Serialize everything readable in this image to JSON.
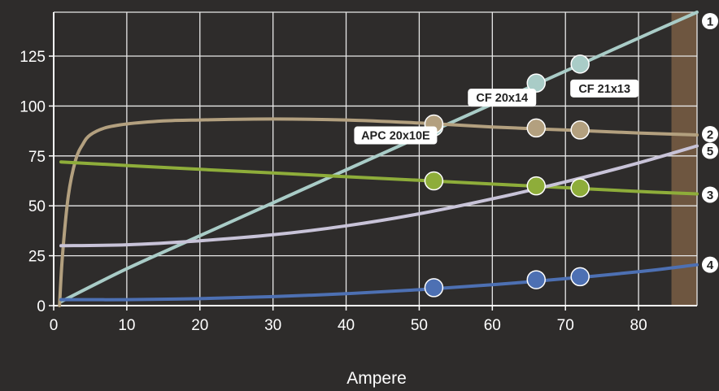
{
  "chart_data": {
    "type": "line",
    "title": "",
    "xlabel": "Ampere",
    "ylabel": "",
    "xlim": [
      0,
      88
    ],
    "ylim": [
      0,
      147
    ],
    "x_ticks": [
      0,
      10,
      20,
      30,
      40,
      50,
      60,
      70,
      80
    ],
    "y_ticks": [
      0,
      25,
      50,
      75,
      100,
      125
    ],
    "grid": true,
    "shaded_x_range": [
      84.5,
      88
    ],
    "series": [
      {
        "name": "1",
        "color": "#a9ccc7",
        "x": [
          1,
          10,
          20,
          30,
          40,
          50,
          60,
          70,
          80,
          88
        ],
        "y": [
          2,
          18.5,
          35,
          51.5,
          68,
          84.5,
          101,
          117.5,
          134,
          147
        ],
        "markers": [
          {
            "x": 52,
            "y": 89.5
          },
          {
            "x": 66,
            "y": 111.5
          },
          {
            "x": 72,
            "y": 121
          }
        ]
      },
      {
        "name": "2",
        "color": "#b3a07f",
        "x": [
          0.8,
          1.2,
          2,
          3,
          4,
          5,
          7,
          10,
          15,
          20,
          30,
          40,
          50,
          60,
          70,
          80,
          88
        ],
        "y": [
          0,
          25,
          55,
          73,
          81,
          85.5,
          89,
          91,
          92.5,
          93,
          93.5,
          93,
          91.5,
          89.5,
          88,
          86.5,
          85.5
        ],
        "markers": [
          {
            "x": 52,
            "y": 91
          },
          {
            "x": 66,
            "y": 89
          },
          {
            "x": 72,
            "y": 88
          }
        ]
      },
      {
        "name": "3",
        "color": "#8ead3a",
        "x": [
          1,
          10,
          20,
          30,
          40,
          50,
          60,
          70,
          80,
          88
        ],
        "y": [
          72,
          70.2,
          68.3,
          66.5,
          64.6,
          62.8,
          60.9,
          59.1,
          57.2,
          56
        ],
        "markers": [
          {
            "x": 52,
            "y": 62.5
          },
          {
            "x": 66,
            "y": 60
          },
          {
            "x": 72,
            "y": 59
          }
        ]
      },
      {
        "name": "4",
        "color": "#4d70b3",
        "x": [
          1,
          10,
          20,
          30,
          40,
          50,
          60,
          70,
          80,
          88
        ],
        "y": [
          3,
          3,
          3.5,
          4.5,
          6,
          8,
          10.5,
          13.5,
          17,
          20.5
        ],
        "markers": [
          {
            "x": 52,
            "y": 9
          },
          {
            "x": 66,
            "y": 13
          },
          {
            "x": 72,
            "y": 14.5
          }
        ]
      },
      {
        "name": "5",
        "color": "#c8c3d8",
        "x": [
          1,
          10,
          20,
          30,
          40,
          50,
          60,
          70,
          80,
          88
        ],
        "y": [
          30,
          30.5,
          32.5,
          35.5,
          40,
          46,
          53.5,
          62,
          71.5,
          80
        ],
        "markers": []
      }
    ],
    "annotations": [
      {
        "text": "APC 20x10E",
        "x": 52,
        "y": 91
      },
      {
        "text": "CF 20x14",
        "x": 66,
        "y": 111.5
      },
      {
        "text": "CF 21x13",
        "x": 72,
        "y": 121
      }
    ]
  }
}
